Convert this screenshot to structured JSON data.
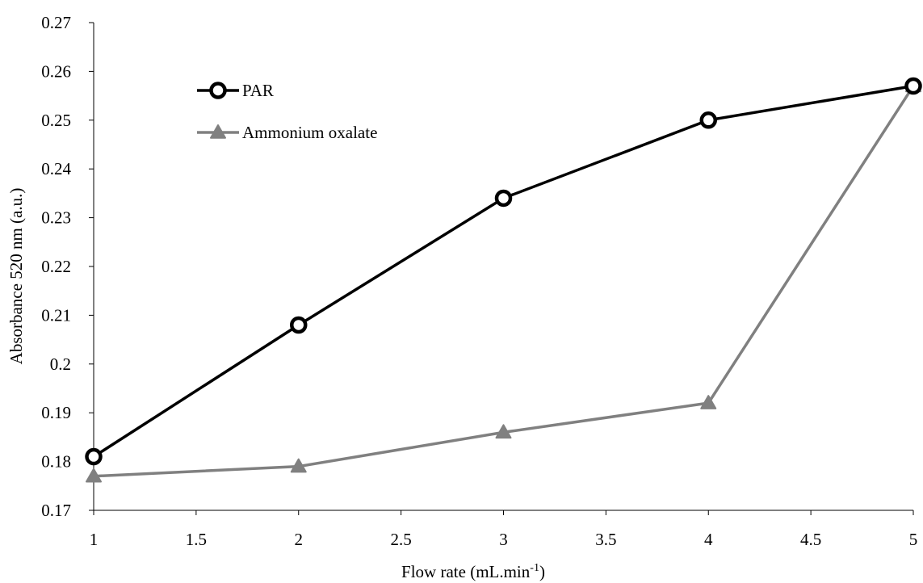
{
  "chart_data": {
    "type": "line",
    "xlabel": "Flow rate (mL.min",
    "xlabel_sup": "-1",
    "xlabel_suffix": ")",
    "ylabel": "Absorbance 520 nm (a.u.)",
    "xlim": [
      1,
      5
    ],
    "ylim": [
      0.17,
      0.27
    ],
    "x_ticks": [
      "1",
      "1.5",
      "2",
      "2.5",
      "3",
      "3.5",
      "4",
      "4.5",
      "5"
    ],
    "y_ticks": [
      "0.17",
      "0.18",
      "0.19",
      "0.2",
      "0.21",
      "0.22",
      "0.23",
      "0.24",
      "0.25",
      "0.26",
      "0.27"
    ],
    "grid": false,
    "legend_position": "top-left",
    "series": [
      {
        "name": "PAR",
        "marker": "circle",
        "color": "#000000",
        "x": [
          1,
          2,
          3,
          4,
          5
        ],
        "y": [
          0.181,
          0.208,
          0.234,
          0.25,
          0.257
        ]
      },
      {
        "name": "Ammonium oxalate",
        "marker": "triangle",
        "color": "#808080",
        "x": [
          1,
          2,
          3,
          4,
          5
        ],
        "y": [
          0.177,
          0.179,
          0.186,
          0.192,
          0.257
        ]
      }
    ]
  }
}
